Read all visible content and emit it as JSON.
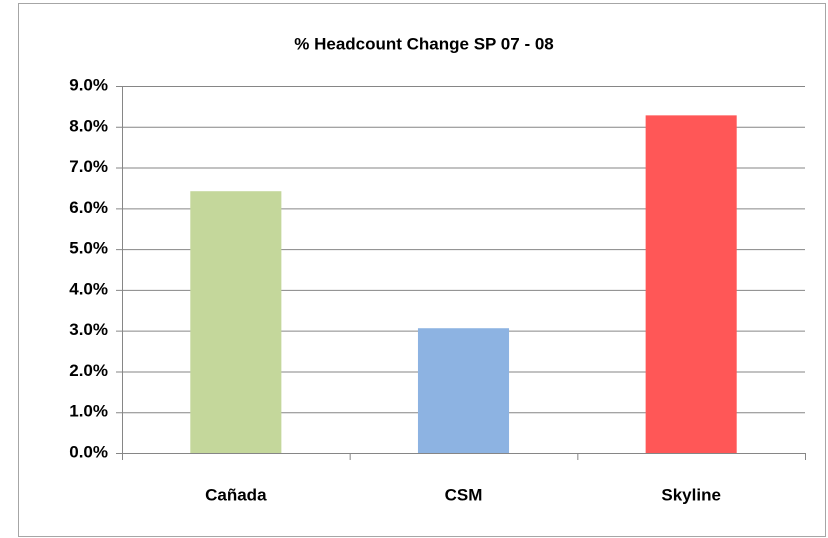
{
  "chart_data": {
    "type": "bar",
    "title": "% Headcount Change SP 07 - 08",
    "categories": [
      "Cañada",
      "CSM",
      "Skyline"
    ],
    "values": [
      6.42,
      3.06,
      8.28
    ],
    "colors": [
      "#c4d79b",
      "#8db3e2",
      "#ff5757"
    ],
    "ylim": [
      0,
      9
    ],
    "yticks": [
      {
        "value": 0,
        "label": "0.0%"
      },
      {
        "value": 1,
        "label": "1.0%"
      },
      {
        "value": 2,
        "label": "2.0%"
      },
      {
        "value": 3,
        "label": "3.0%"
      },
      {
        "value": 4,
        "label": "4.0%"
      },
      {
        "value": 5,
        "label": "5.0%"
      },
      {
        "value": 6,
        "label": "6.0%"
      },
      {
        "value": 7,
        "label": "7.0%"
      },
      {
        "value": 8,
        "label": "8.0%"
      },
      {
        "value": 9,
        "label": "9.0%"
      }
    ],
    "grid": true
  }
}
